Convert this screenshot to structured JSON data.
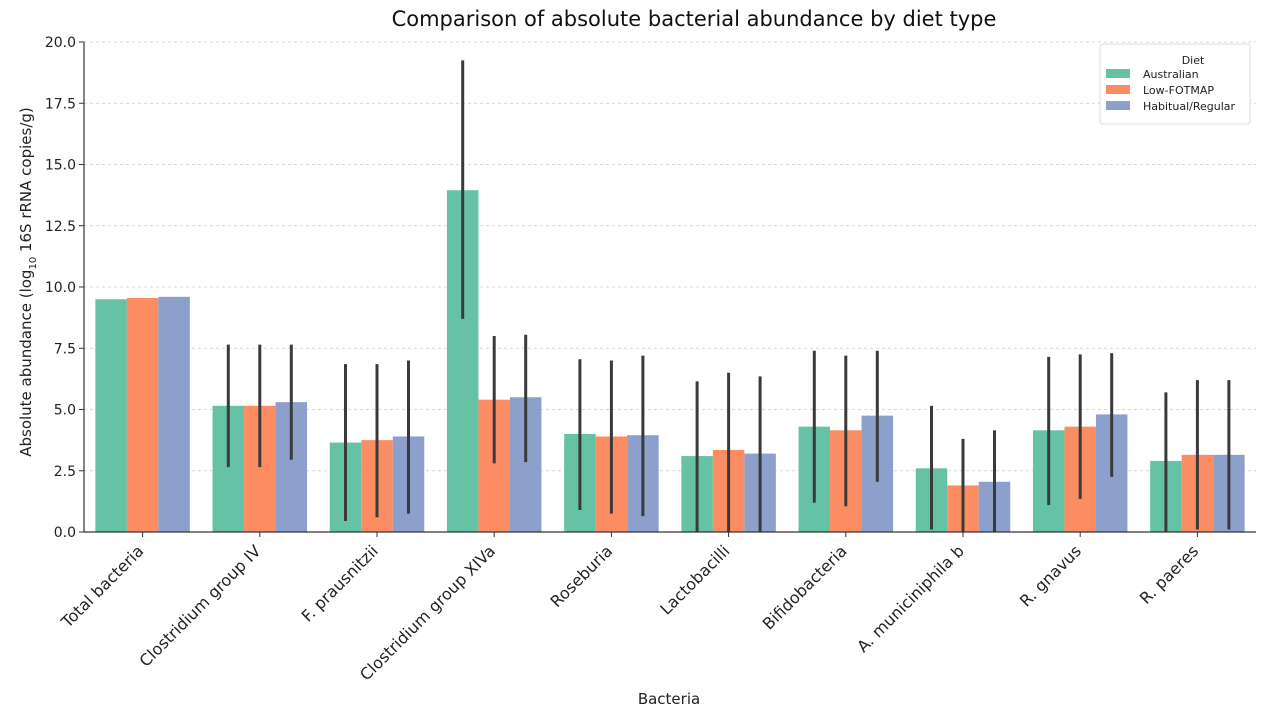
{
  "chart_data": {
    "type": "bar",
    "title": "Comparison of absolute bacterial abundance by diet type",
    "xlabel": "Bacteria",
    "ylabel": "Absolute abundance (log",
    "ylabel_sub": "10",
    "ylabel_rest": " 16S rRNA copies/g)",
    "ylim": [
      0,
      20
    ],
    "yticks": [
      "0.0",
      "2.5",
      "5.0",
      "7.5",
      "10.0",
      "12.5",
      "15.0",
      "17.5",
      "20.0"
    ],
    "grid": "horizontal dashed",
    "legend_placement": "top-right",
    "legend_title": "Diet",
    "categories": [
      "Total bacteria",
      "Clostridium group IV",
      "F. prausnitzii",
      "Clostridium group XIVa",
      "Roseburia",
      "Lactobacilli",
      "Bifidobacteria",
      "A. municiniphila b",
      "R. gnavus",
      "R. paeres"
    ],
    "series": [
      {
        "name": "Australian",
        "color": "#66c2a5",
        "values": [
          9.5,
          5.15,
          3.65,
          13.95,
          4.0,
          3.1,
          4.3,
          2.6,
          4.15,
          2.9
        ],
        "error_low": [
          null,
          2.65,
          0.45,
          8.7,
          0.9,
          0.0,
          1.2,
          0.1,
          1.1,
          0.0
        ],
        "error_high": [
          null,
          7.65,
          6.85,
          19.25,
          7.05,
          6.15,
          7.4,
          5.15,
          7.15,
          5.7
        ]
      },
      {
        "name": "Low-FOTMAP",
        "color": "#fc8d62",
        "values": [
          9.55,
          5.15,
          3.75,
          5.4,
          3.9,
          3.35,
          4.15,
          1.9,
          4.3,
          3.15
        ],
        "error_low": [
          null,
          2.65,
          0.6,
          2.8,
          0.75,
          0.0,
          1.05,
          0.0,
          1.35,
          0.1
        ],
        "error_high": [
          null,
          7.65,
          6.85,
          8.0,
          7.0,
          6.5,
          7.2,
          3.8,
          7.25,
          6.2
        ]
      },
      {
        "name": "Habitual/Regular",
        "color": "#8da0cb",
        "values": [
          9.6,
          5.3,
          3.9,
          5.5,
          3.95,
          3.2,
          4.75,
          2.05,
          4.8,
          3.15
        ],
        "error_low": [
          null,
          2.95,
          0.75,
          2.85,
          0.65,
          0.0,
          2.05,
          0.0,
          2.25,
          0.1
        ],
        "error_high": [
          null,
          7.65,
          7.0,
          8.05,
          7.2,
          6.35,
          7.4,
          4.15,
          7.3,
          6.2
        ]
      }
    ]
  }
}
